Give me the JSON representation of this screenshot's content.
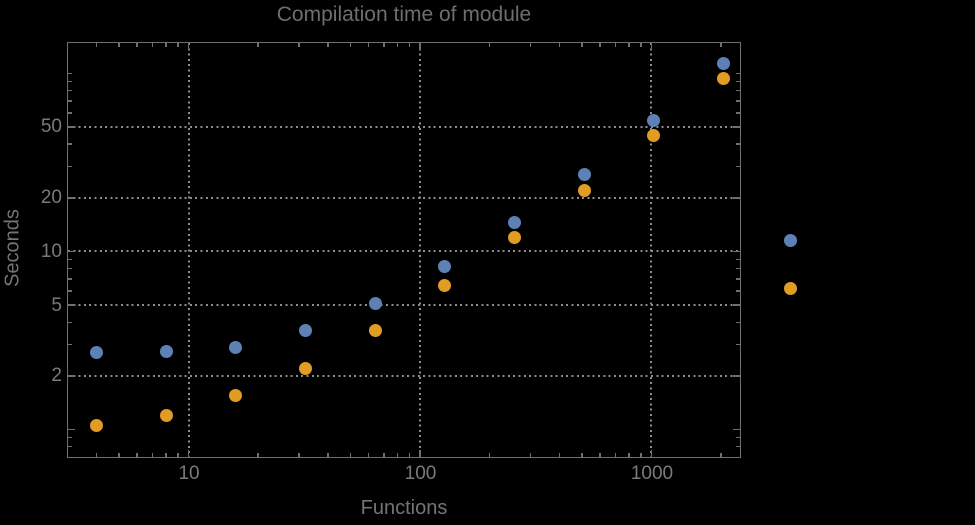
{
  "chart_data": {
    "type": "scatter",
    "title": "Compilation time of module",
    "xlabel": "Functions",
    "ylabel": "Seconds",
    "x_scale": "log",
    "y_scale": "log",
    "xlim": [
      3,
      2400
    ],
    "ylim": [
      0.705,
      149
    ],
    "grid": true,
    "x": [
      4,
      8,
      16,
      32,
      64,
      128,
      256,
      512,
      1024,
      2048
    ],
    "series": [
      {
        "name": "series-1-blue",
        "color": "#5e81b5",
        "values": [
          2.7,
          2.75,
          2.9,
          3.6,
          5.1,
          8.2,
          14.5,
          27,
          54,
          114
        ]
      },
      {
        "name": "series-2-orange",
        "color": "#e19c24",
        "values": [
          1.05,
          1.2,
          1.55,
          2.2,
          3.6,
          6.4,
          12,
          22,
          45,
          94
        ]
      }
    ],
    "x_ticks": {
      "major": [
        10,
        100,
        1000
      ],
      "major_labels": [
        "10",
        "100",
        "1000"
      ],
      "minor": [
        4,
        5,
        6,
        7,
        8,
        9,
        20,
        30,
        40,
        50,
        60,
        70,
        80,
        90,
        200,
        300,
        400,
        500,
        600,
        700,
        800,
        900,
        2000
      ]
    },
    "y_ticks": {
      "major": [
        1,
        2,
        5,
        10,
        20,
        50
      ],
      "major_labels": [
        "",
        "2",
        "5",
        "10",
        "20",
        "50"
      ],
      "minor": [
        0.8,
        0.9,
        3,
        4,
        6,
        7,
        8,
        9,
        30,
        40,
        60,
        70,
        80,
        90,
        100
      ]
    },
    "gridlines": {
      "x": [
        10,
        100,
        1000
      ],
      "y": [
        2,
        5,
        10,
        20,
        50
      ]
    },
    "legend": {
      "position": "outside-right",
      "entries": [
        {
          "label": "",
          "color": "#5e81b5"
        },
        {
          "label": "",
          "color": "#e19c24"
        }
      ]
    }
  },
  "colors": {
    "background": "#000000",
    "frame": "#6f6f6f",
    "gridline": "#8d8d8d",
    "title_text": "#6e6e6e",
    "axis_label_text": "#747474",
    "tick_label_text": "#7a7a7a",
    "series1": "#5e81b5",
    "series2": "#e19c24"
  }
}
